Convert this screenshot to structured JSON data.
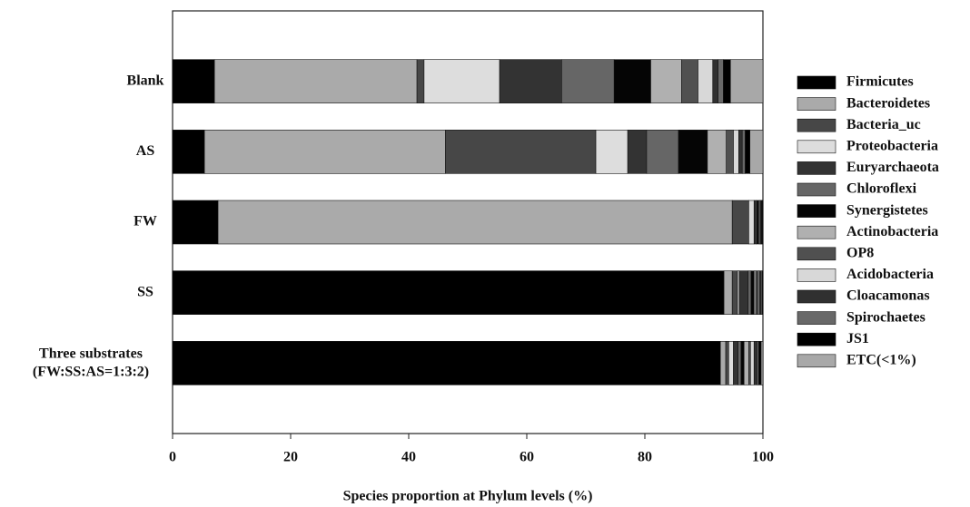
{
  "chart_data": {
    "type": "stacked-bar-horizontal",
    "x_label": "Species proportion at Phylum levels (%)",
    "categories": [
      "Blank",
      "AS",
      "FW",
      "SS",
      "Three substrates\n(FW:SS:AS=1:3:2)"
    ],
    "xlim": [
      0,
      100
    ],
    "xticks": [
      0,
      20,
      40,
      60,
      80,
      100
    ],
    "series": [
      {
        "name": "Firmicutes",
        "color": "#000000",
        "values": [
          7.1,
          5.4,
          7.7,
          93.4,
          92.8
        ]
      },
      {
        "name": "Bacteroidetes",
        "color": "#aaaaaa",
        "values": [
          34.3,
          40.8,
          87.1,
          1.4,
          0.9
        ]
      },
      {
        "name": "Bacteria_uc",
        "color": "#474747",
        "values": [
          1.2,
          25.5,
          2.8,
          0.9,
          0.5
        ]
      },
      {
        "name": "Proteobacteria",
        "color": "#dddddd",
        "values": [
          12.8,
          5.4,
          0.9,
          0.3,
          0.8
        ]
      },
      {
        "name": "Euryarchaeota",
        "color": "#333333",
        "values": [
          10.5,
          3.2,
          0.3,
          1.5,
          0.8
        ]
      },
      {
        "name": "Chloroflexi",
        "color": "#666666",
        "values": [
          8.9,
          5.4,
          0.2,
          0.5,
          0.5
        ]
      },
      {
        "name": "Synergistetes",
        "color": "#050505",
        "values": [
          6.2,
          4.9,
          0.3,
          0.5,
          0.5
        ]
      },
      {
        "name": "Actinobacteria",
        "color": "#b0b0b0",
        "values": [
          5.2,
          3.2,
          0.2,
          0.3,
          0.8
        ]
      },
      {
        "name": "OP8",
        "color": "#505050",
        "values": [
          2.8,
          1.2,
          0.1,
          0.4,
          0.3
        ]
      },
      {
        "name": "Acidobacteria",
        "color": "#d8d8d8",
        "values": [
          2.5,
          0.9,
          0.1,
          0.2,
          0.6
        ]
      },
      {
        "name": "Cloacamonas",
        "color": "#303030",
        "values": [
          0.9,
          0.6,
          0.1,
          0.3,
          0.5
        ]
      },
      {
        "name": "Spirochaetes",
        "color": "#686868",
        "values": [
          0.9,
          0.5,
          0.1,
          0.2,
          0.3
        ]
      },
      {
        "name": "JS1",
        "color": "#000000",
        "values": [
          1.2,
          0.8,
          0.1,
          0.1,
          0.4
        ]
      },
      {
        "name": "ETC(<1%)",
        "color": "#a8a8a8",
        "values": [
          5.5,
          2.2,
          0,
          0,
          0.3
        ]
      }
    ]
  }
}
